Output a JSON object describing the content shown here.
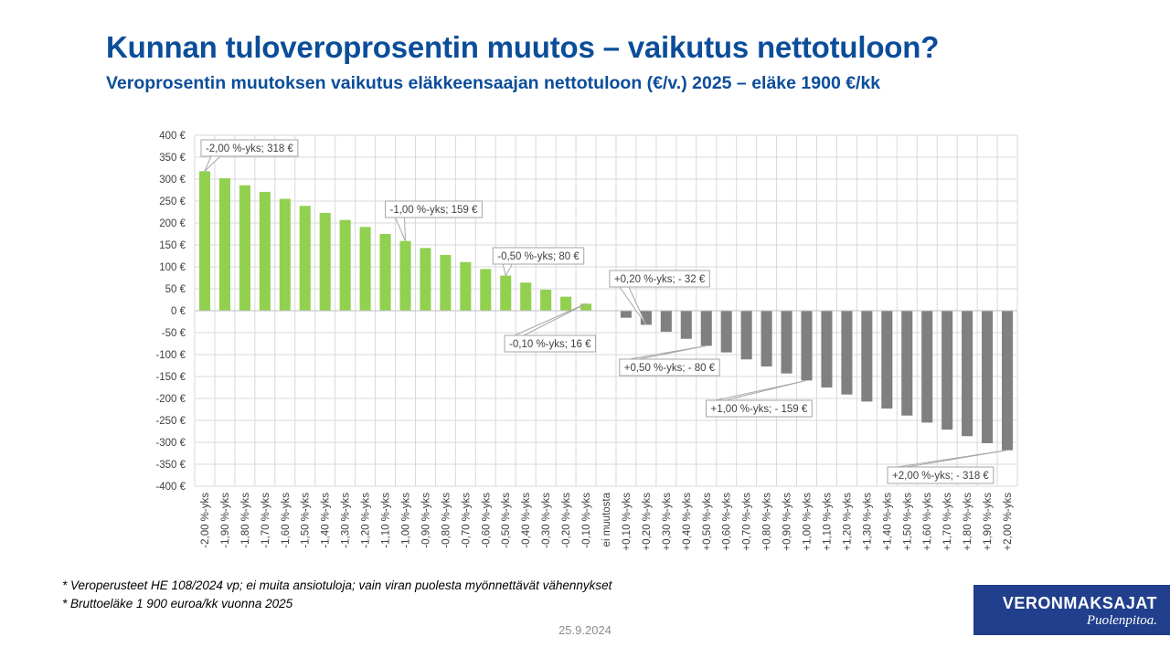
{
  "title": "Kunnan tuloveroprosentin muutos – vaikutus nettotuloon?",
  "subtitle": "Veroprosentin muutoksen vaikutus eläkkeensaajan nettotuloon (€/v.) 2025 – eläke 1900 €/kk",
  "footnotes": [
    "* Veroperusteet HE 108/2024 vp; ei muita ansiotuloja; vain viran puolesta myönnettävät vähennykset",
    "* Bruttoeläke 1 900 euroa/kk vuonna 2025"
  ],
  "date": "25.9.2024",
  "logo": {
    "name": "VERONMAKSAJAT",
    "tagline": "Puolenpitoa."
  },
  "colors": {
    "positive": "#92d050",
    "negative": "#808080",
    "grid": "#d9d9d9",
    "title": "#0b4d9a",
    "logo_bg": "#213f8c"
  },
  "chart_data": {
    "type": "bar",
    "ylim": [
      -400,
      400
    ],
    "ytick_step": 50,
    "ytick_labels": [
      "400 €",
      "350 €",
      "300 €",
      "250 €",
      "200 €",
      "150 €",
      "100 €",
      "50 €",
      "0 €",
      "-50 €",
      "-100 €",
      "-150 €",
      "-200 €",
      "-250 €",
      "-300 €",
      "-350 €",
      "-400 €"
    ],
    "grid": true,
    "categories": [
      "-2,00 %-yks",
      "-1,90 %-yks",
      "-1,80 %-yks",
      "-1,70 %-yks",
      "-1,60 %-yks",
      "-1,50 %-yks",
      "-1,40 %-yks",
      "-1,30 %-yks",
      "-1,20 %-yks",
      "-1,10 %-yks",
      "-1,00 %-yks",
      "-0,90 %-yks",
      "-0,80 %-yks",
      "-0,70 %-yks",
      "-0,60 %-yks",
      "-0,50 %-yks",
      "-0,40 %-yks",
      "-0,30 %-yks",
      "-0,20 %-yks",
      "-0,10 %-yks",
      "ei muutosta",
      "+0,10 %-yks",
      "+0,20 %-yks",
      "+0,30 %-yks",
      "+0,40 %-yks",
      "+0,50 %-yks",
      "+0,60 %-yks",
      "+0,70 %-yks",
      "+0,80 %-yks",
      "+0,90 %-yks",
      "+1,00 %-yks",
      "+1,10 %-yks",
      "+1,20 %-yks",
      "+1,30 %-yks",
      "+1,40 %-yks",
      "+1,50 %-yks",
      "+1,60 %-yks",
      "+1,70 %-yks",
      "+1,80 %-yks",
      "+1,90 %-yks",
      "+2,00 %-yks"
    ],
    "values": [
      318,
      302,
      286,
      271,
      255,
      239,
      223,
      207,
      191,
      175,
      159,
      143,
      127,
      111,
      95,
      80,
      64,
      48,
      32,
      16,
      0,
      -16,
      -32,
      -48,
      -64,
      -80,
      -95,
      -111,
      -127,
      -143,
      -159,
      -175,
      -191,
      -207,
      -223,
      -239,
      -255,
      -271,
      -286,
      -302,
      -318
    ],
    "annotations": [
      {
        "index": 0,
        "text": "-2,00 %-yks;  318 €"
      },
      {
        "index": 10,
        "text": "-1,00 %-yks;  159 €"
      },
      {
        "index": 15,
        "text": "-0,50 %-yks;  80 €"
      },
      {
        "index": 19,
        "text": "-0,10 %-yks;  16 €"
      },
      {
        "index": 22,
        "text": "+0,20 %-yks; - 32 €"
      },
      {
        "index": 25,
        "text": "+0,50 %-yks; - 80 €"
      },
      {
        "index": 30,
        "text": "+1,00 %-yks; - 159 €"
      },
      {
        "index": 40,
        "text": "+2,00 %-yks; - 318 €"
      }
    ]
  }
}
